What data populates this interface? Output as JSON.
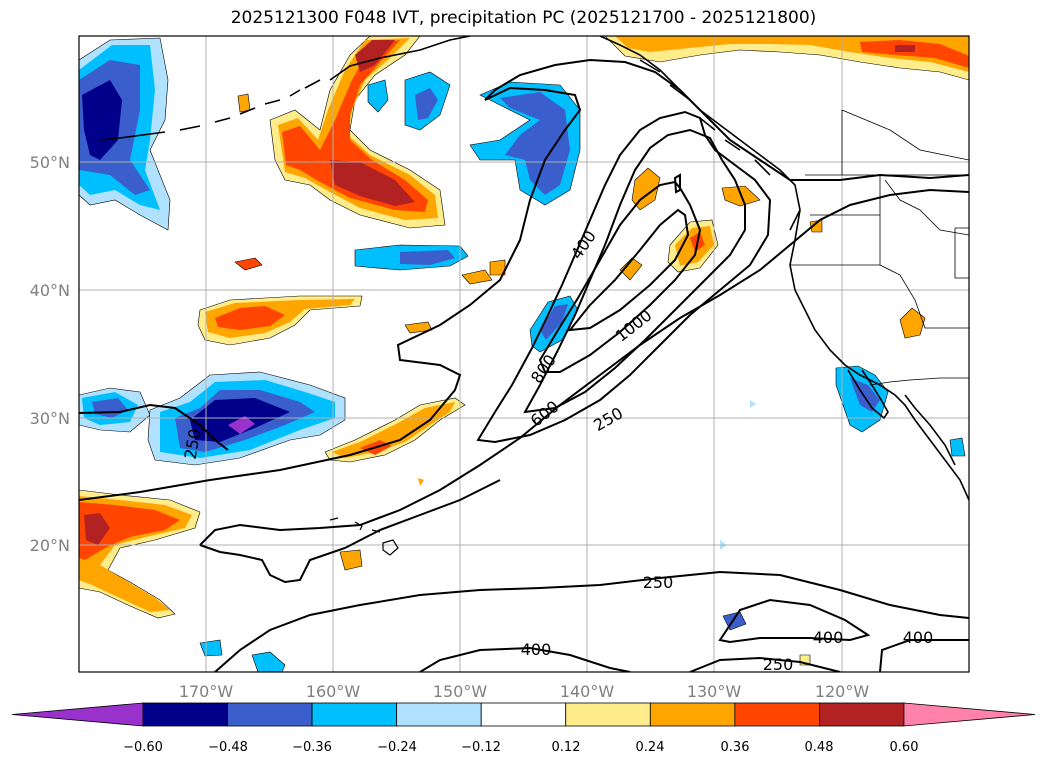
{
  "title": "2025121300 F048 IVT, precipitation PC (2025121700 - 2025121800)",
  "map": {
    "lat_labels": [
      "50°N",
      "40°N",
      "30°N",
      "20°N"
    ],
    "lon_labels": [
      "170°W",
      "160°W",
      "150°W",
      "140°W",
      "130°W",
      "120°W"
    ],
    "contour_labels": [
      "400",
      "1000",
      "800",
      "600",
      "250",
      "250",
      "250",
      "400",
      "400",
      "400",
      "250"
    ]
  },
  "colorbar": {
    "tick_labels": [
      "−0.60",
      "−0.48",
      "−0.36",
      "−0.24",
      "−0.12",
      "0.12",
      "0.24",
      "0.36",
      "0.48",
      "0.60"
    ],
    "colors": [
      "#9932cc",
      "#00008b",
      "#3a5fcd",
      "#00bfff",
      "#b0e2ff",
      "#ffffff",
      "#ffec8b",
      "#ffa500",
      "#ff4500",
      "#b22222",
      "#ff82ab"
    ]
  }
}
